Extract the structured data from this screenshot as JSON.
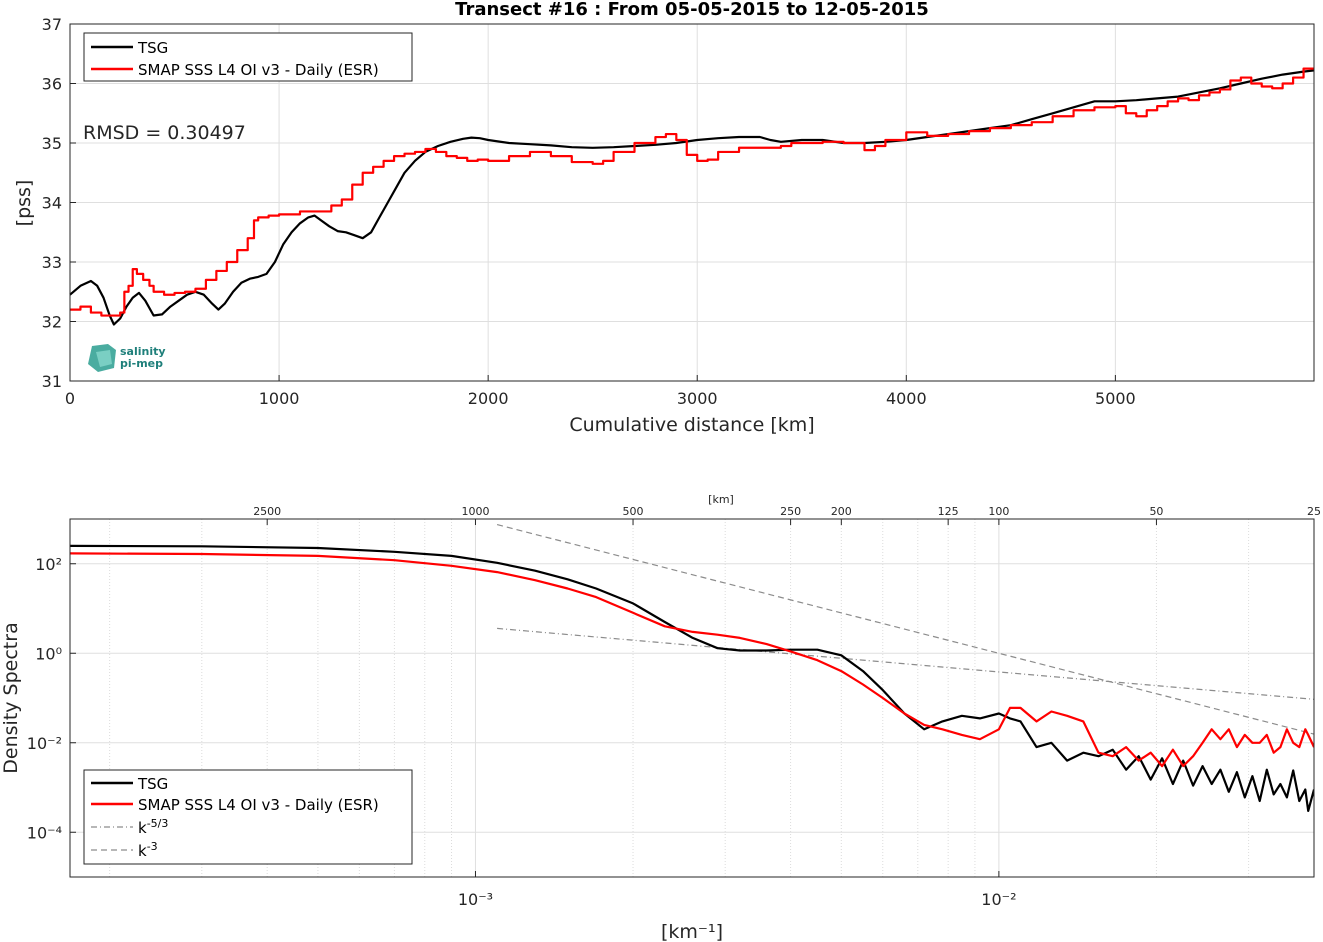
{
  "logo": {
    "line1": "salinity",
    "line2": "pi-mep"
  },
  "chart_data": [
    {
      "type": "line",
      "title": "Transect #16 : From 05-05-2015 to 12-05-2015",
      "xlabel": "Cumulative distance [km]",
      "ylabel": "[pss]",
      "xlim": [
        0,
        5950
      ],
      "ylim": [
        31,
        37
      ],
      "xticks": [
        0,
        1000,
        2000,
        3000,
        4000,
        5000
      ],
      "yticks": [
        31,
        32,
        33,
        34,
        35,
        36,
        37
      ],
      "grid": true,
      "legend_position": "top-left",
      "annotation": "RMSD = 0.30497",
      "colors": {
        "TSG": "#000000",
        "SMAP": "#ff0000"
      },
      "series": [
        {
          "name": "TSG",
          "x": [
            0,
            50,
            100,
            130,
            160,
            190,
            210,
            240,
            270,
            300,
            330,
            360,
            400,
            440,
            480,
            520,
            560,
            600,
            640,
            680,
            710,
            740,
            780,
            820,
            860,
            900,
            940,
            980,
            1020,
            1060,
            1100,
            1140,
            1170,
            1200,
            1240,
            1280,
            1320,
            1360,
            1400,
            1440,
            1480,
            1520,
            1560,
            1600,
            1650,
            1700,
            1760,
            1820,
            1880,
            1920,
            1960,
            2000,
            2100,
            2200,
            2300,
            2400,
            2500,
            2600,
            2700,
            2800,
            2900,
            3000,
            3100,
            3200,
            3300,
            3350,
            3400,
            3500,
            3600,
            3700,
            3800,
            3900,
            4000,
            4100,
            4200,
            4300,
            4400,
            4500,
            4600,
            4700,
            4800,
            4900,
            5000,
            5100,
            5200,
            5300,
            5400,
            5500,
            5600,
            5700,
            5800,
            5900,
            5950
          ],
          "y": [
            32.45,
            32.6,
            32.68,
            32.6,
            32.4,
            32.1,
            31.95,
            32.05,
            32.25,
            32.4,
            32.48,
            32.35,
            32.1,
            32.12,
            32.25,
            32.35,
            32.45,
            32.5,
            32.45,
            32.3,
            32.2,
            32.3,
            32.5,
            32.65,
            32.72,
            32.75,
            32.8,
            33.0,
            33.3,
            33.5,
            33.65,
            33.75,
            33.78,
            33.7,
            33.6,
            33.52,
            33.5,
            33.45,
            33.4,
            33.5,
            33.75,
            34.0,
            34.25,
            34.5,
            34.7,
            34.85,
            34.95,
            35.02,
            35.07,
            35.09,
            35.08,
            35.05,
            35.0,
            34.98,
            34.96,
            34.93,
            34.92,
            34.93,
            34.95,
            34.97,
            35.0,
            35.05,
            35.08,
            35.1,
            35.1,
            35.05,
            35.02,
            35.05,
            35.05,
            35.0,
            35.0,
            35.02,
            35.05,
            35.1,
            35.15,
            35.2,
            35.25,
            35.3,
            35.4,
            35.5,
            35.6,
            35.7,
            35.7,
            35.72,
            35.75,
            35.78,
            35.85,
            35.92,
            36.0,
            36.08,
            36.15,
            36.2,
            36.22
          ]
        },
        {
          "name": "SMAP SSS L4 OI v3 - Daily (ESR)",
          "x": [
            0,
            50,
            100,
            150,
            200,
            240,
            260,
            280,
            300,
            320,
            350,
            380,
            400,
            450,
            500,
            550,
            600,
            650,
            700,
            750,
            800,
            850,
            880,
            900,
            950,
            1000,
            1100,
            1200,
            1250,
            1300,
            1350,
            1400,
            1450,
            1500,
            1550,
            1600,
            1650,
            1700,
            1750,
            1800,
            1850,
            1900,
            1950,
            2000,
            2100,
            2200,
            2300,
            2400,
            2500,
            2550,
            2600,
            2700,
            2800,
            2850,
            2900,
            2950,
            3000,
            3050,
            3100,
            3200,
            3300,
            3400,
            3450,
            3500,
            3600,
            3700,
            3800,
            3850,
            3900,
            4000,
            4100,
            4200,
            4300,
            4400,
            4500,
            4600,
            4700,
            4800,
            4900,
            5000,
            5050,
            5100,
            5150,
            5200,
            5250,
            5300,
            5350,
            5400,
            5450,
            5500,
            5550,
            5600,
            5650,
            5700,
            5750,
            5800,
            5850,
            5900,
            5950
          ],
          "y": [
            32.2,
            32.25,
            32.15,
            32.1,
            32.1,
            32.15,
            32.5,
            32.6,
            32.88,
            32.8,
            32.7,
            32.6,
            32.5,
            32.45,
            32.48,
            32.5,
            32.55,
            32.7,
            32.85,
            33.0,
            33.2,
            33.4,
            33.7,
            33.75,
            33.78,
            33.8,
            33.85,
            33.85,
            33.95,
            34.05,
            34.3,
            34.5,
            34.6,
            34.7,
            34.78,
            34.82,
            34.85,
            34.9,
            34.85,
            34.78,
            34.75,
            34.7,
            34.72,
            34.7,
            34.78,
            34.85,
            34.78,
            34.68,
            34.65,
            34.7,
            34.85,
            35.0,
            35.1,
            35.15,
            35.05,
            34.8,
            34.7,
            34.72,
            34.85,
            34.92,
            34.92,
            34.95,
            35.0,
            35.0,
            35.02,
            35.0,
            34.88,
            34.95,
            35.05,
            35.18,
            35.12,
            35.15,
            35.2,
            35.25,
            35.3,
            35.35,
            35.45,
            35.55,
            35.6,
            35.62,
            35.5,
            35.45,
            35.55,
            35.62,
            35.7,
            35.75,
            35.72,
            35.8,
            35.85,
            35.9,
            36.05,
            36.1,
            36.0,
            35.95,
            35.92,
            36.0,
            36.1,
            36.25,
            36.25
          ]
        }
      ]
    },
    {
      "type": "line",
      "title": "",
      "xlabel": "[km⁻¹]",
      "ylabel": "Density Spectra",
      "top_xlabel": "[km]",
      "x_scale": "log",
      "y_scale": "log",
      "xlim": [
        0.000168,
        0.04
      ],
      "ylim": [
        1e-05,
        1000
      ],
      "xticks": [
        0.001,
        0.01
      ],
      "xtick_labels": [
        "10⁻³",
        "10⁻²"
      ],
      "yticks": [
        0.0001,
        0.01,
        1,
        100
      ],
      "ytick_labels": [
        "10⁻⁴",
        "10⁻²",
        "10⁰",
        "10²"
      ],
      "top_xticks_km": [
        2500,
        1000,
        500,
        250,
        200,
        125,
        100,
        50,
        25
      ],
      "grid": true,
      "legend_position": "bottom-left",
      "colors": {
        "TSG": "#000000",
        "SMAP": "#ff0000",
        "k53": "#8c8c8c",
        "k3": "#8c8c8c"
      },
      "series": [
        {
          "name": "TSG",
          "x": [
            0.000168,
            0.0003,
            0.0005,
            0.0007,
            0.0009,
            0.0011,
            0.0013,
            0.0015,
            0.0017,
            0.002,
            0.0023,
            0.0026,
            0.0029,
            0.0032,
            0.0036,
            0.004,
            0.0045,
            0.005,
            0.0055,
            0.006,
            0.0066,
            0.0072,
            0.0078,
            0.0085,
            0.0092,
            0.01,
            0.0105,
            0.011,
            0.0118,
            0.0126,
            0.0135,
            0.0145,
            0.0155,
            0.0165,
            0.0175,
            0.0185,
            0.0195,
            0.0205,
            0.0215,
            0.0225,
            0.0235,
            0.0245,
            0.0255,
            0.0265,
            0.0275,
            0.0285,
            0.0295,
            0.0305,
            0.0315,
            0.0325,
            0.0335,
            0.0345,
            0.0355,
            0.0365,
            0.0375,
            0.0385,
            0.039,
            0.04
          ],
          "y": [
            250,
            245,
            225,
            185,
            150,
            105,
            70,
            45,
            28,
            13,
            5,
            2.2,
            1.3,
            1.15,
            1.15,
            1.2,
            1.2,
            0.9,
            0.4,
            0.15,
            0.045,
            0.02,
            0.03,
            0.04,
            0.035,
            0.045,
            0.035,
            0.03,
            0.008,
            0.01,
            0.004,
            0.006,
            0.005,
            0.007,
            0.0025,
            0.005,
            0.0015,
            0.0045,
            0.0012,
            0.004,
            0.0011,
            0.003,
            0.0012,
            0.0025,
            0.0008,
            0.0022,
            0.0006,
            0.0018,
            0.0005,
            0.0025,
            0.0007,
            0.0012,
            0.0006,
            0.0024,
            0.0005,
            0.0009,
            0.0003,
            0.0009
          ]
        },
        {
          "name": "SMAP SSS L4 OI v3 - Daily (ESR)",
          "x": [
            0.000168,
            0.0003,
            0.0005,
            0.0007,
            0.0009,
            0.0011,
            0.0013,
            0.0015,
            0.0017,
            0.002,
            0.0023,
            0.0026,
            0.0029,
            0.0032,
            0.0036,
            0.004,
            0.0045,
            0.005,
            0.0055,
            0.006,
            0.0066,
            0.0072,
            0.0078,
            0.0085,
            0.0092,
            0.01,
            0.0105,
            0.011,
            0.0118,
            0.0126,
            0.0135,
            0.0145,
            0.0155,
            0.0165,
            0.0175,
            0.0185,
            0.0195,
            0.0205,
            0.0215,
            0.0225,
            0.0235,
            0.0245,
            0.0255,
            0.0265,
            0.0275,
            0.0285,
            0.0295,
            0.0305,
            0.0315,
            0.0325,
            0.0335,
            0.0345,
            0.0355,
            0.0365,
            0.0375,
            0.0385,
            0.039,
            0.04
          ],
          "y": [
            170,
            165,
            150,
            120,
            90,
            65,
            43,
            28,
            18,
            8,
            4,
            3,
            2.6,
            2.2,
            1.6,
            1.1,
            0.7,
            0.4,
            0.2,
            0.1,
            0.045,
            0.025,
            0.02,
            0.015,
            0.012,
            0.02,
            0.06,
            0.06,
            0.03,
            0.05,
            0.04,
            0.03,
            0.006,
            0.005,
            0.008,
            0.004,
            0.006,
            0.003,
            0.007,
            0.003,
            0.005,
            0.01,
            0.02,
            0.012,
            0.02,
            0.008,
            0.015,
            0.01,
            0.01,
            0.015,
            0.006,
            0.008,
            0.02,
            0.01,
            0.008,
            0.02,
            0.015,
            0.008
          ]
        },
        {
          "name": "k⁻⁵ᐟ³",
          "x": [
            0.0011,
            0.04
          ],
          "y": [
            3.6,
            0.0933
          ]
        },
        {
          "name": "k⁻³",
          "x": [
            0.0011,
            0.04
          ],
          "y": [
            750,
            0.0156
          ]
        }
      ]
    }
  ]
}
